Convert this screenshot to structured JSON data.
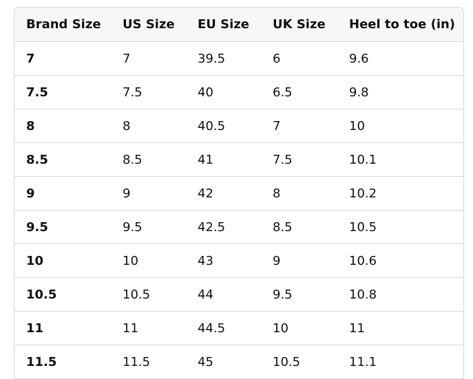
{
  "table": {
    "headers": [
      "Brand Size",
      "US Size",
      "EU Size",
      "UK Size",
      "Heel to toe (in)"
    ],
    "rows": [
      [
        "7",
        "7",
        "39.5",
        "6",
        "9.6"
      ],
      [
        "7.5",
        "7.5",
        "40",
        "6.5",
        "9.8"
      ],
      [
        "8",
        "8",
        "40.5",
        "7",
        "10"
      ],
      [
        "8.5",
        "8.5",
        "41",
        "7.5",
        "10.1"
      ],
      [
        "9",
        "9",
        "42",
        "8",
        "10.2"
      ],
      [
        "9.5",
        "9.5",
        "42.5",
        "8.5",
        "10.5"
      ],
      [
        "10",
        "10",
        "43",
        "9",
        "10.6"
      ],
      [
        "10.5",
        "10.5",
        "44",
        "9.5",
        "10.8"
      ],
      [
        "11",
        "11",
        "44.5",
        "10",
        "11"
      ],
      [
        "11.5",
        "11.5",
        "45",
        "10.5",
        "11.1"
      ]
    ]
  }
}
